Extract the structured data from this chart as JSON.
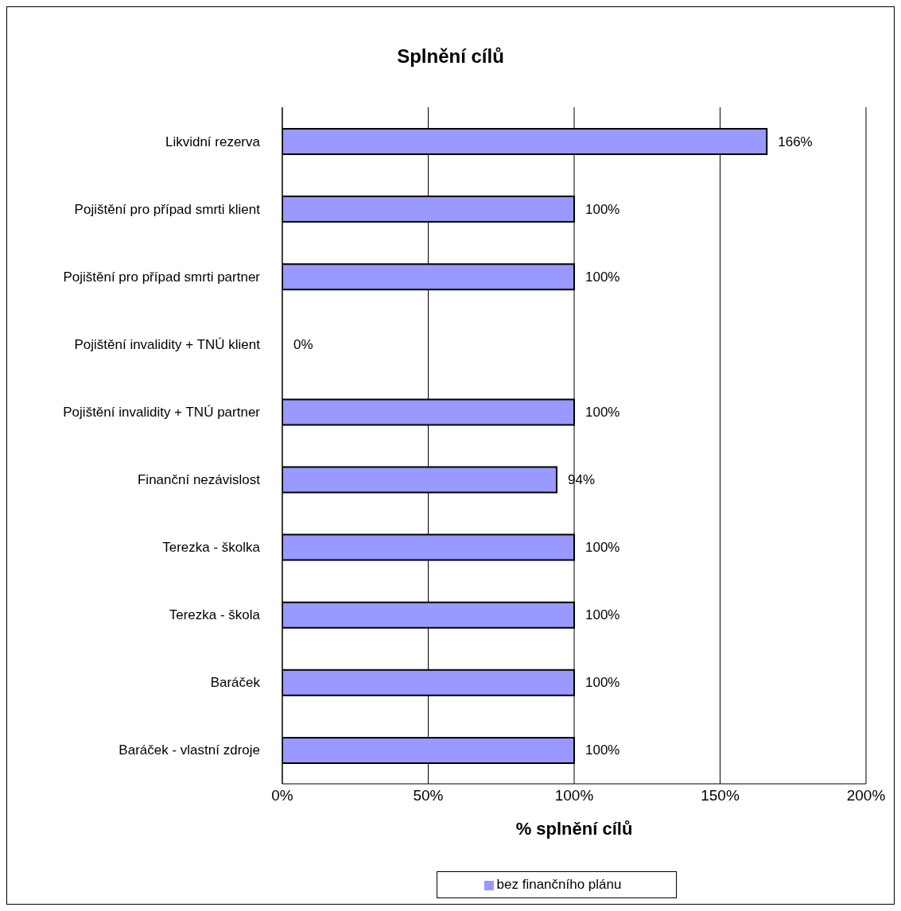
{
  "chart_data": {
    "type": "bar",
    "orientation": "horizontal",
    "title": "Splnění cílů",
    "xlabel": "% splnění cílů",
    "categories": [
      "Likvidní rezerva",
      "Pojištění pro případ smrti klient",
      "Pojištění pro případ smrti partner",
      "Pojištění invalidity + TNÚ klient",
      "Pojištění invalidity + TNÚ partner",
      "Finanční nezávislost",
      "Terezka - školka",
      "Terezka - škola",
      "Baráček",
      "Baráček - vlastní zdroje"
    ],
    "series": [
      {
        "name": "bez finančního plánu",
        "color": "#9999ff",
        "values": [
          166,
          100,
          100,
          0,
          100,
          94,
          100,
          100,
          100,
          100
        ],
        "value_labels": [
          "166%",
          "100%",
          "100%",
          "0%",
          "100%",
          "94%",
          "100%",
          "100%",
          "100%",
          "100%"
        ]
      }
    ],
    "xlim": [
      0,
      200
    ],
    "xticks": [
      {
        "value": 0,
        "label": "0%"
      },
      {
        "value": 50,
        "label": "50%"
      },
      {
        "value": 100,
        "label": "100%"
      },
      {
        "value": 150,
        "label": "150%"
      },
      {
        "value": 200,
        "label": "200%"
      }
    ],
    "grid": "x",
    "legend": "bottom"
  }
}
